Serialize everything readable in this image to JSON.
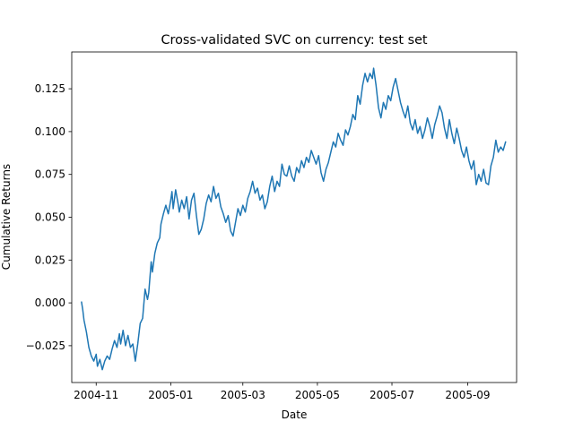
{
  "chart_data": {
    "type": "line",
    "title": "Cross-validated SVC on currency: test set",
    "xlabel": "Date",
    "ylabel": "Cumulative Returns",
    "x_range": [
      "2004-10-12",
      "2005-10-11"
    ],
    "ylim": [
      -0.0465,
      0.1465
    ],
    "grid": false,
    "x_ticks": [
      {
        "date": "2004-11-01",
        "label": "2004-11"
      },
      {
        "date": "2005-01-01",
        "label": "2005-01"
      },
      {
        "date": "2005-03-01",
        "label": "2005-03"
      },
      {
        "date": "2005-05-01",
        "label": "2005-05"
      },
      {
        "date": "2005-07-01",
        "label": "2005-07"
      },
      {
        "date": "2005-09-01",
        "label": "2005-09"
      }
    ],
    "y_ticks": [
      {
        "value": -0.025,
        "label": "−0.025"
      },
      {
        "value": 0.0,
        "label": "0.000"
      },
      {
        "value": 0.025,
        "label": "0.025"
      },
      {
        "value": 0.05,
        "label": "0.050"
      },
      {
        "value": 0.075,
        "label": "0.075"
      },
      {
        "value": 0.1,
        "label": "0.100"
      },
      {
        "value": 0.125,
        "label": "0.125"
      }
    ],
    "series": [
      {
        "color": "#1f77b4",
        "points": [
          [
            "2004-10-20",
            0.0005
          ],
          [
            "2004-10-21",
            -0.004
          ],
          [
            "2004-10-22",
            -0.01
          ],
          [
            "2004-10-24",
            -0.017
          ],
          [
            "2004-10-26",
            -0.026
          ],
          [
            "2004-10-28",
            -0.031
          ],
          [
            "2004-10-30",
            -0.034
          ],
          [
            "2004-11-01",
            -0.03
          ],
          [
            "2004-11-02",
            -0.037
          ],
          [
            "2004-11-04",
            -0.033
          ],
          [
            "2004-11-06",
            -0.039
          ],
          [
            "2004-11-08",
            -0.034
          ],
          [
            "2004-11-10",
            -0.031
          ],
          [
            "2004-11-12",
            -0.033
          ],
          [
            "2004-11-14",
            -0.027
          ],
          [
            "2004-11-16",
            -0.022
          ],
          [
            "2004-11-18",
            -0.026
          ],
          [
            "2004-11-20",
            -0.018
          ],
          [
            "2004-11-21",
            -0.024
          ],
          [
            "2004-11-23",
            -0.016
          ],
          [
            "2004-11-25",
            -0.025
          ],
          [
            "2004-11-27",
            -0.019
          ],
          [
            "2004-11-29",
            -0.026
          ],
          [
            "2004-12-01",
            -0.024
          ],
          [
            "2004-12-03",
            -0.034
          ],
          [
            "2004-12-05",
            -0.024
          ],
          [
            "2004-12-07",
            -0.012
          ],
          [
            "2004-12-09",
            -0.009
          ],
          [
            "2004-12-11",
            0.008
          ],
          [
            "2004-12-13",
            0.002
          ],
          [
            "2004-12-14",
            0.006
          ],
          [
            "2004-12-16",
            0.024
          ],
          [
            "2004-12-17",
            0.018
          ],
          [
            "2004-12-19",
            0.029
          ],
          [
            "2004-12-21",
            0.035
          ],
          [
            "2004-12-23",
            0.038
          ],
          [
            "2004-12-24",
            0.046
          ],
          [
            "2004-12-26",
            0.052
          ],
          [
            "2004-12-28",
            0.057
          ],
          [
            "2004-12-30",
            0.052
          ],
          [
            "2005-01-01",
            0.06
          ],
          [
            "2005-01-02",
            0.065
          ],
          [
            "2005-01-03",
            0.055
          ],
          [
            "2005-01-05",
            0.066
          ],
          [
            "2005-01-07",
            0.058
          ],
          [
            "2005-01-08",
            0.053
          ],
          [
            "2005-01-10",
            0.06
          ],
          [
            "2005-01-12",
            0.055
          ],
          [
            "2005-01-14",
            0.062
          ],
          [
            "2005-01-16",
            0.049
          ],
          [
            "2005-01-18",
            0.06
          ],
          [
            "2005-01-20",
            0.064
          ],
          [
            "2005-01-22",
            0.051
          ],
          [
            "2005-01-24",
            0.04
          ],
          [
            "2005-01-26",
            0.043
          ],
          [
            "2005-01-28",
            0.049
          ],
          [
            "2005-01-30",
            0.058
          ],
          [
            "2005-02-01",
            0.063
          ],
          [
            "2005-02-03",
            0.059
          ],
          [
            "2005-02-05",
            0.068
          ],
          [
            "2005-02-07",
            0.061
          ],
          [
            "2005-02-09",
            0.064
          ],
          [
            "2005-02-11",
            0.056
          ],
          [
            "2005-02-13",
            0.052
          ],
          [
            "2005-02-15",
            0.047
          ],
          [
            "2005-02-17",
            0.051
          ],
          [
            "2005-02-19",
            0.042
          ],
          [
            "2005-02-21",
            0.039
          ],
          [
            "2005-02-23",
            0.047
          ],
          [
            "2005-02-25",
            0.055
          ],
          [
            "2005-02-27",
            0.051
          ],
          [
            "2005-03-01",
            0.057
          ],
          [
            "2005-03-03",
            0.053
          ],
          [
            "2005-03-05",
            0.061
          ],
          [
            "2005-03-07",
            0.065
          ],
          [
            "2005-03-09",
            0.071
          ],
          [
            "2005-03-11",
            0.064
          ],
          [
            "2005-03-13",
            0.067
          ],
          [
            "2005-03-15",
            0.06
          ],
          [
            "2005-03-17",
            0.063
          ],
          [
            "2005-03-19",
            0.055
          ],
          [
            "2005-03-21",
            0.059
          ],
          [
            "2005-03-23",
            0.068
          ],
          [
            "2005-03-25",
            0.074
          ],
          [
            "2005-03-27",
            0.065
          ],
          [
            "2005-03-29",
            0.071
          ],
          [
            "2005-03-31",
            0.068
          ],
          [
            "2005-04-02",
            0.081
          ],
          [
            "2005-04-04",
            0.075
          ],
          [
            "2005-04-06",
            0.074
          ],
          [
            "2005-04-08",
            0.08
          ],
          [
            "2005-04-10",
            0.074
          ],
          [
            "2005-04-12",
            0.071
          ],
          [
            "2005-04-14",
            0.079
          ],
          [
            "2005-04-16",
            0.076
          ],
          [
            "2005-04-18",
            0.083
          ],
          [
            "2005-04-20",
            0.079
          ],
          [
            "2005-04-22",
            0.085
          ],
          [
            "2005-04-24",
            0.082
          ],
          [
            "2005-04-26",
            0.089
          ],
          [
            "2005-04-28",
            0.085
          ],
          [
            "2005-04-30",
            0.081
          ],
          [
            "2005-05-02",
            0.086
          ],
          [
            "2005-05-04",
            0.076
          ],
          [
            "2005-05-06",
            0.071
          ],
          [
            "2005-05-08",
            0.078
          ],
          [
            "2005-05-10",
            0.082
          ],
          [
            "2005-05-12",
            0.088
          ],
          [
            "2005-05-14",
            0.094
          ],
          [
            "2005-05-16",
            0.091
          ],
          [
            "2005-05-18",
            0.099
          ],
          [
            "2005-05-20",
            0.095
          ],
          [
            "2005-05-22",
            0.092
          ],
          [
            "2005-05-24",
            0.101
          ],
          [
            "2005-05-26",
            0.098
          ],
          [
            "2005-05-28",
            0.103
          ],
          [
            "2005-05-30",
            0.11
          ],
          [
            "2005-06-01",
            0.107
          ],
          [
            "2005-06-03",
            0.121
          ],
          [
            "2005-06-05",
            0.116
          ],
          [
            "2005-06-07",
            0.127
          ],
          [
            "2005-06-09",
            0.134
          ],
          [
            "2005-06-11",
            0.129
          ],
          [
            "2005-06-13",
            0.134
          ],
          [
            "2005-06-15",
            0.131
          ],
          [
            "2005-06-16",
            0.137
          ],
          [
            "2005-06-18",
            0.127
          ],
          [
            "2005-06-20",
            0.114
          ],
          [
            "2005-06-22",
            0.108
          ],
          [
            "2005-06-24",
            0.117
          ],
          [
            "2005-06-26",
            0.113
          ],
          [
            "2005-06-28",
            0.121
          ],
          [
            "2005-06-30",
            0.118
          ],
          [
            "2005-07-02",
            0.126
          ],
          [
            "2005-07-04",
            0.131
          ],
          [
            "2005-07-06",
            0.124
          ],
          [
            "2005-07-08",
            0.117
          ],
          [
            "2005-07-10",
            0.112
          ],
          [
            "2005-07-12",
            0.108
          ],
          [
            "2005-07-14",
            0.115
          ],
          [
            "2005-07-16",
            0.105
          ],
          [
            "2005-07-18",
            0.101
          ],
          [
            "2005-07-20",
            0.107
          ],
          [
            "2005-07-22",
            0.099
          ],
          [
            "2005-07-24",
            0.103
          ],
          [
            "2005-07-26",
            0.096
          ],
          [
            "2005-07-28",
            0.101
          ],
          [
            "2005-07-30",
            0.108
          ],
          [
            "2005-08-01",
            0.103
          ],
          [
            "2005-08-03",
            0.096
          ],
          [
            "2005-08-05",
            0.104
          ],
          [
            "2005-08-07",
            0.109
          ],
          [
            "2005-08-09",
            0.115
          ],
          [
            "2005-08-11",
            0.111
          ],
          [
            "2005-08-13",
            0.102
          ],
          [
            "2005-08-15",
            0.096
          ],
          [
            "2005-08-17",
            0.107
          ],
          [
            "2005-08-19",
            0.099
          ],
          [
            "2005-08-21",
            0.093
          ],
          [
            "2005-08-23",
            0.102
          ],
          [
            "2005-08-25",
            0.096
          ],
          [
            "2005-08-27",
            0.089
          ],
          [
            "2005-08-29",
            0.085
          ],
          [
            "2005-08-31",
            0.091
          ],
          [
            "2005-09-02",
            0.083
          ],
          [
            "2005-09-04",
            0.078
          ],
          [
            "2005-09-06",
            0.083
          ],
          [
            "2005-09-08",
            0.069
          ],
          [
            "2005-09-10",
            0.075
          ],
          [
            "2005-09-12",
            0.071
          ],
          [
            "2005-09-14",
            0.078
          ],
          [
            "2005-09-16",
            0.07
          ],
          [
            "2005-09-18",
            0.069
          ],
          [
            "2005-09-20",
            0.08
          ],
          [
            "2005-09-22",
            0.085
          ],
          [
            "2005-09-24",
            0.095
          ],
          [
            "2005-09-26",
            0.088
          ],
          [
            "2005-09-28",
            0.091
          ],
          [
            "2005-09-30",
            0.089
          ],
          [
            "2005-10-02",
            0.094
          ]
        ]
      }
    ]
  }
}
